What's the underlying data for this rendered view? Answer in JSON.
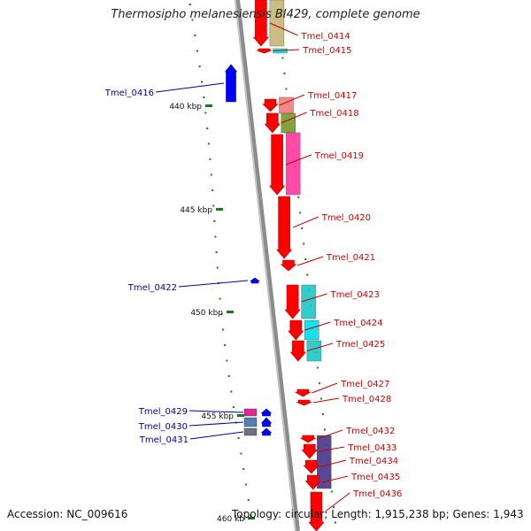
{
  "title": "Thermosipho melanesiensis BI429, complete genome",
  "footer": {
    "accession": "Accession: NC_009616",
    "topology": "Topology: circular; Length: 1,915,238 bp; Genes: 1,943"
  },
  "colors": {
    "forward_gene": "#ff0000",
    "reverse_gene": "#0000ff",
    "forward_label": "#cc0000",
    "reverse_label": "#000099",
    "backbone": "#8c8c8c",
    "tick": "#1a7a1a"
  },
  "scale_labels": [
    "440 kbp",
    "445 kbp",
    "450 kbp",
    "455 kbp",
    "460 kb"
  ],
  "forward_genes": [
    {
      "label": "Tmel_0414",
      "cog_color": "#c8b878"
    },
    {
      "label": "Tmel_0415",
      "cog_color": "#00e8e8"
    },
    {
      "label": "Tmel_0417",
      "cog_color": "#f08080"
    },
    {
      "label": "Tmel_0418",
      "cog_color": "#7a9a30"
    },
    {
      "label": "Tmel_0419",
      "cog_color": "#ff3ca0"
    },
    {
      "label": "Tmel_0420",
      "cog_color": ""
    },
    {
      "label": "Tmel_0421",
      "cog_color": ""
    },
    {
      "label": "Tmel_0423",
      "cog_color": "#20c8c8"
    },
    {
      "label": "Tmel_0424",
      "cog_color": "#00e0f0"
    },
    {
      "label": "Tmel_0425",
      "cog_color": "#20c8c8"
    },
    {
      "label": "Tmel_0427",
      "cog_color": ""
    },
    {
      "label": "Tmel_0428",
      "cog_color": ""
    },
    {
      "label": "Tmel_0432",
      "cog_color": "#4a3a8c"
    },
    {
      "label": "Tmel_0433",
      "cog_color": "#4a3a8c"
    },
    {
      "label": "Tmel_0434",
      "cog_color": "#4a3a8c"
    },
    {
      "label": "Tmel_0435",
      "cog_color": "#4a3a8c"
    },
    {
      "label": "Tmel_0436",
      "cog_color": ""
    }
  ],
  "reverse_genes": [
    {
      "label": "Tmel_0416",
      "cog_color": ""
    },
    {
      "label": "Tmel_0422",
      "cog_color": ""
    },
    {
      "label": "Tmel_0429",
      "cog_color": "#e02890"
    },
    {
      "label": "Tmel_0430",
      "cog_color": "#5080b0"
    },
    {
      "label": "Tmel_0431",
      "cog_color": "#707080"
    }
  ]
}
